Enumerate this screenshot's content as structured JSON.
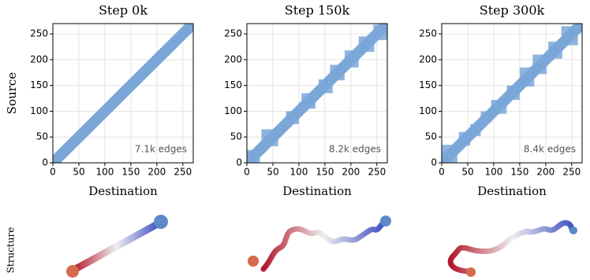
{
  "chart_data": [
    {
      "type": "adjacency",
      "title": "Step 0k",
      "xlabel": "Destination",
      "ylabel": "Source",
      "annotation": "7.1k edges",
      "xlim": [
        0,
        270
      ],
      "ylim": [
        0,
        270
      ],
      "xticks": [
        0,
        50,
        100,
        150,
        200,
        250
      ],
      "yticks": [
        0,
        50,
        100,
        150,
        200,
        250
      ],
      "color": "#7ba7d8",
      "grid": true,
      "x": [
        0,
        270
      ],
      "values": [
        0,
        270
      ],
      "blocks": []
    },
    {
      "type": "adjacency",
      "title": "Step 150k",
      "xlabel": "Destination",
      "annotation": "8.2k edges",
      "xlim": [
        0,
        270
      ],
      "ylim": [
        0,
        270
      ],
      "xticks": [
        0,
        50,
        100,
        150,
        200,
        250
      ],
      "yticks": [
        0,
        50,
        100,
        150,
        200,
        250
      ],
      "color": "#7ba7d8",
      "grid": true,
      "x": [
        0,
        270
      ],
      "values": [
        0,
        270
      ],
      "blocks": [
        [
          0,
          25,
          0,
          25
        ],
        [
          28,
          60,
          32,
          65
        ],
        [
          75,
          100,
          75,
          100
        ],
        [
          105,
          132,
          105,
          135
        ],
        [
          138,
          165,
          135,
          162
        ],
        [
          160,
          188,
          160,
          190
        ],
        [
          188,
          215,
          185,
          218
        ],
        [
          215,
          245,
          215,
          245
        ],
        [
          243,
          270,
          238,
          268
        ]
      ]
    },
    {
      "type": "adjacency",
      "title": "Step 300k",
      "xlabel": "Destination",
      "annotation": "8.4k edges",
      "xlim": [
        0,
        270
      ],
      "ylim": [
        0,
        270
      ],
      "xticks": [
        0,
        50,
        100,
        150,
        200,
        250
      ],
      "yticks": [
        0,
        50,
        100,
        150,
        200,
        250
      ],
      "color": "#7ba7d8",
      "grid": true,
      "x": [
        0,
        270
      ],
      "values": [
        0,
        270
      ],
      "blocks": [
        [
          0,
          30,
          0,
          35
        ],
        [
          33,
          55,
          33,
          60
        ],
        [
          55,
          75,
          52,
          75
        ],
        [
          75,
          95,
          78,
          100
        ],
        [
          95,
          125,
          95,
          122
        ],
        [
          125,
          150,
          122,
          150
        ],
        [
          150,
          178,
          148,
          185
        ],
        [
          175,
          202,
          172,
          210
        ],
        [
          205,
          232,
          202,
          235
        ],
        [
          230,
          262,
          228,
          265
        ]
      ]
    }
  ],
  "row_label": "Structure"
}
